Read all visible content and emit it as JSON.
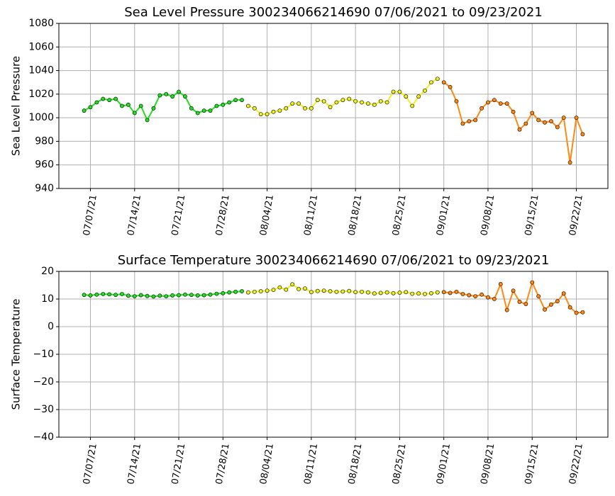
{
  "chart_data": [
    {
      "type": "scatter",
      "title": "Sea Level Pressure 300234066214690  07/06/2021 to 09/23/2021",
      "y_label": "Sea Level Pressure",
      "grid": true,
      "xlim": [
        "2021-07-02",
        "2021-09-27"
      ],
      "xticks": [
        {
          "value": "2021-07-07",
          "label": "07/07/21"
        },
        {
          "value": "2021-07-14",
          "label": "07/14/21"
        },
        {
          "value": "2021-07-21",
          "label": "07/21/21"
        },
        {
          "value": "2021-07-28",
          "label": "07/28/21"
        },
        {
          "value": "2021-08-04",
          "label": "08/04/21"
        },
        {
          "value": "2021-08-11",
          "label": "08/11/21"
        },
        {
          "value": "2021-08-18",
          "label": "08/18/21"
        },
        {
          "value": "2021-08-25",
          "label": "08/25/21"
        },
        {
          "value": "2021-09-01",
          "label": "09/01/21"
        },
        {
          "value": "2021-09-08",
          "label": "09/08/21"
        },
        {
          "value": "2021-09-15",
          "label": "09/15/21"
        },
        {
          "value": "2021-09-22",
          "label": "09/22/21"
        }
      ],
      "ylim": [
        940,
        1080
      ],
      "yticks": [
        940,
        960,
        980,
        1000,
        1020,
        1040,
        1060,
        1080
      ],
      "series": [
        {
          "color": "#22dd22",
          "x": [
            "2021-07-06",
            "2021-07-07",
            "2021-07-08",
            "2021-07-09",
            "2021-07-10",
            "2021-07-11",
            "2021-07-12",
            "2021-07-13",
            "2021-07-14",
            "2021-07-15",
            "2021-07-16",
            "2021-07-17",
            "2021-07-18",
            "2021-07-19",
            "2021-07-20",
            "2021-07-21",
            "2021-07-22",
            "2021-07-23",
            "2021-07-24",
            "2021-07-25",
            "2021-07-26",
            "2021-07-27",
            "2021-07-28",
            "2021-07-29",
            "2021-07-30",
            "2021-07-31"
          ],
          "values": [
            1006,
            1009,
            1013,
            1016,
            1015,
            1016,
            1010,
            1011,
            1004,
            1010,
            998,
            1008,
            1019,
            1020,
            1018,
            1022,
            1018,
            1008,
            1004,
            1006,
            1006,
            1010,
            1011,
            1013,
            1015,
            1015
          ]
        },
        {
          "color": "#eeee22",
          "x": [
            "2021-08-01",
            "2021-08-02",
            "2021-08-03",
            "2021-08-04",
            "2021-08-05",
            "2021-08-06",
            "2021-08-07",
            "2021-08-08",
            "2021-08-09",
            "2021-08-10",
            "2021-08-11",
            "2021-08-12",
            "2021-08-13",
            "2021-08-14",
            "2021-08-15",
            "2021-08-16",
            "2021-08-17",
            "2021-08-18",
            "2021-08-19",
            "2021-08-20",
            "2021-08-21",
            "2021-08-22",
            "2021-08-23",
            "2021-08-24",
            "2021-08-25",
            "2021-08-26",
            "2021-08-27",
            "2021-08-28",
            "2021-08-29",
            "2021-08-30",
            "2021-08-31"
          ],
          "values": [
            1010,
            1008,
            1003,
            1003,
            1005,
            1006,
            1008,
            1012,
            1012,
            1008,
            1008,
            1015,
            1014,
            1009,
            1013,
            1015,
            1016,
            1014,
            1013,
            1012,
            1011,
            1014,
            1013,
            1022,
            1022,
            1018,
            1010,
            1018,
            1023,
            1030,
            1033
          ]
        },
        {
          "color": "#ff8811",
          "x": [
            "2021-09-01",
            "2021-09-02",
            "2021-09-03",
            "2021-09-04",
            "2021-09-05",
            "2021-09-06",
            "2021-09-07",
            "2021-09-08",
            "2021-09-09",
            "2021-09-10",
            "2021-09-11",
            "2021-09-12",
            "2021-09-13",
            "2021-09-14",
            "2021-09-15",
            "2021-09-16",
            "2021-09-17",
            "2021-09-18",
            "2021-09-19",
            "2021-09-20",
            "2021-09-21",
            "2021-09-22",
            "2021-09-23"
          ],
          "values": [
            1030,
            1026,
            1014,
            995,
            997,
            998,
            1008,
            1013,
            1015,
            1012,
            1012,
            1005,
            990,
            995,
            1004,
            998,
            996,
            997,
            992,
            1000,
            962,
            1000,
            986
          ]
        }
      ]
    },
    {
      "type": "scatter",
      "title": "Surface Temperature 300234066214690  07/06/2021 to 09/23/2021",
      "y_label": "Surface Temperature",
      "grid": true,
      "xlim": [
        "2021-07-02",
        "2021-09-27"
      ],
      "xticks": [
        {
          "value": "2021-07-07",
          "label": "07/07/21"
        },
        {
          "value": "2021-07-14",
          "label": "07/14/21"
        },
        {
          "value": "2021-07-21",
          "label": "07/21/21"
        },
        {
          "value": "2021-07-28",
          "label": "07/28/21"
        },
        {
          "value": "2021-08-04",
          "label": "08/04/21"
        },
        {
          "value": "2021-08-11",
          "label": "08/11/21"
        },
        {
          "value": "2021-08-18",
          "label": "08/18/21"
        },
        {
          "value": "2021-08-25",
          "label": "08/25/21"
        },
        {
          "value": "2021-09-01",
          "label": "09/01/21"
        },
        {
          "value": "2021-09-08",
          "label": "09/08/21"
        },
        {
          "value": "2021-09-15",
          "label": "09/15/21"
        },
        {
          "value": "2021-09-22",
          "label": "09/22/21"
        }
      ],
      "ylim": [
        -40,
        20
      ],
      "yticks": [
        {
          "value": -40,
          "label": "−40"
        },
        {
          "value": -30,
          "label": "−30"
        },
        {
          "value": -20,
          "label": "−20"
        },
        {
          "value": -10,
          "label": "−10"
        },
        0,
        10,
        20
      ],
      "series": [
        {
          "color": "#22dd22",
          "x": [
            "2021-07-06",
            "2021-07-07",
            "2021-07-08",
            "2021-07-09",
            "2021-07-10",
            "2021-07-11",
            "2021-07-12",
            "2021-07-13",
            "2021-07-14",
            "2021-07-15",
            "2021-07-16",
            "2021-07-17",
            "2021-07-18",
            "2021-07-19",
            "2021-07-20",
            "2021-07-21",
            "2021-07-22",
            "2021-07-23",
            "2021-07-24",
            "2021-07-25",
            "2021-07-26",
            "2021-07-27",
            "2021-07-28",
            "2021-07-29",
            "2021-07-30",
            "2021-07-31"
          ],
          "values": [
            11.5,
            11.3,
            11.6,
            11.8,
            11.7,
            11.5,
            11.8,
            11.2,
            11.0,
            11.4,
            11.1,
            10.9,
            11.2,
            11.0,
            11.3,
            11.4,
            11.6,
            11.5,
            11.3,
            11.4,
            11.6,
            11.9,
            12.1,
            12.4,
            12.6,
            12.8
          ]
        },
        {
          "color": "#eeee22",
          "x": [
            "2021-08-01",
            "2021-08-02",
            "2021-08-03",
            "2021-08-04",
            "2021-08-05",
            "2021-08-06",
            "2021-08-07",
            "2021-08-08",
            "2021-08-09",
            "2021-08-10",
            "2021-08-11",
            "2021-08-12",
            "2021-08-13",
            "2021-08-14",
            "2021-08-15",
            "2021-08-16",
            "2021-08-17",
            "2021-08-18",
            "2021-08-19",
            "2021-08-20",
            "2021-08-21",
            "2021-08-22",
            "2021-08-23",
            "2021-08-24",
            "2021-08-25",
            "2021-08-26",
            "2021-08-27",
            "2021-08-28",
            "2021-08-29",
            "2021-08-30",
            "2021-08-31"
          ],
          "values": [
            12.4,
            12.6,
            12.8,
            13.0,
            13.3,
            14.2,
            13.4,
            15.3,
            13.6,
            13.8,
            12.5,
            12.9,
            13.0,
            12.8,
            12.6,
            12.7,
            12.9,
            12.5,
            12.6,
            12.4,
            12.0,
            12.2,
            12.4,
            12.1,
            12.3,
            12.5,
            11.9,
            12.0,
            11.8,
            12.1,
            12.4
          ]
        },
        {
          "color": "#ff8811",
          "x": [
            "2021-09-01",
            "2021-09-02",
            "2021-09-03",
            "2021-09-04",
            "2021-09-05",
            "2021-09-06",
            "2021-09-07",
            "2021-09-08",
            "2021-09-09",
            "2021-09-10",
            "2021-09-11",
            "2021-09-12",
            "2021-09-13",
            "2021-09-14",
            "2021-09-15",
            "2021-09-16",
            "2021-09-17",
            "2021-09-18",
            "2021-09-19",
            "2021-09-20",
            "2021-09-21",
            "2021-09-22",
            "2021-09-23"
          ],
          "values": [
            12.5,
            12.2,
            12.6,
            11.8,
            11.4,
            11.0,
            11.6,
            10.6,
            10.0,
            15.4,
            6.0,
            13.0,
            9.0,
            8.2,
            16.0,
            11.0,
            6.2,
            8.0,
            9.2,
            12.0,
            7.0,
            5.0,
            5.2
          ]
        }
      ]
    }
  ]
}
